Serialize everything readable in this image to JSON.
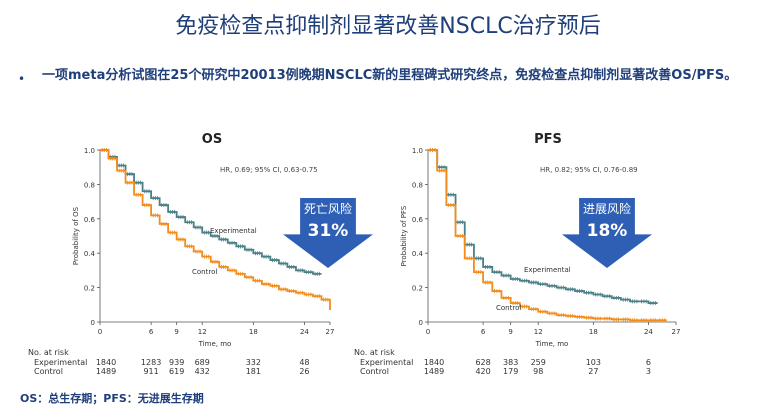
{
  "slide": {
    "title": "免疫检查点抑制剂显著改善NSCLC治疗预后",
    "bullet": "一项meta分析试图在25个研究中20013例晚期NSCLC新的里程碑式研究终点，免疫检查点抑制剂显著改善OS/PFS。",
    "bullet_marker": "•",
    "footnote": "OS：总生存期；PFS：无进展生存期"
  },
  "chart_data": [
    {
      "type": "line",
      "title": "OS",
      "xlabel": "Time, mo",
      "ylabel": "Probability of OS",
      "xlim": [
        0,
        27
      ],
      "ylim": [
        0,
        1.0
      ],
      "xticks": [
        0,
        6,
        9,
        12,
        18,
        24,
        27
      ],
      "yticks": [
        "0",
        "0.2",
        "0.4",
        "0.6",
        "0.8",
        "1.0"
      ],
      "annotation": "HR, 0.69; 95% CI, 0.63-0.75",
      "callout": {
        "label": "死亡风险",
        "value": "31%",
        "color": "#2e5fb5"
      },
      "series": [
        {
          "name": "Experimental",
          "color": "#4a7f86",
          "x": [
            0,
            1,
            2,
            3,
            4,
            5,
            6,
            7,
            8,
            9,
            10,
            11,
            12,
            13,
            14,
            15,
            16,
            17,
            18,
            19,
            20,
            21,
            22,
            23,
            24,
            25,
            26
          ],
          "y": [
            1.0,
            0.96,
            0.91,
            0.86,
            0.81,
            0.76,
            0.72,
            0.68,
            0.64,
            0.61,
            0.58,
            0.55,
            0.52,
            0.5,
            0.48,
            0.46,
            0.44,
            0.42,
            0.4,
            0.38,
            0.36,
            0.34,
            0.32,
            0.3,
            0.29,
            0.28,
            0.28
          ]
        },
        {
          "name": "Control",
          "color": "#f28c1a",
          "x": [
            0,
            1,
            2,
            3,
            4,
            5,
            6,
            7,
            8,
            9,
            10,
            11,
            12,
            13,
            14,
            15,
            16,
            17,
            18,
            19,
            20,
            21,
            22,
            23,
            24,
            25,
            26,
            27
          ],
          "y": [
            1.0,
            0.95,
            0.88,
            0.81,
            0.74,
            0.68,
            0.62,
            0.57,
            0.52,
            0.48,
            0.44,
            0.41,
            0.38,
            0.35,
            0.32,
            0.3,
            0.28,
            0.26,
            0.24,
            0.22,
            0.21,
            0.19,
            0.18,
            0.17,
            0.16,
            0.15,
            0.13,
            0.07
          ]
        }
      ],
      "risk_table": {
        "header": "No. at risk",
        "times": [
          0,
          6,
          9,
          12,
          18,
          24
        ],
        "rows": [
          {
            "label": "Experimental",
            "values": [
              "1840",
              "1283",
              "939",
              "689",
              "332",
              "48"
            ]
          },
          {
            "label": "Control",
            "values": [
              "1489",
              "911",
              "619",
              "432",
              "181",
              "26"
            ]
          }
        ]
      }
    },
    {
      "type": "line",
      "title": "PFS",
      "xlabel": "Time, mo",
      "ylabel": "Probability of PFS",
      "xlim": [
        0,
        27
      ],
      "ylim": [
        0,
        1.0
      ],
      "xticks": [
        0,
        6,
        9,
        12,
        18,
        24,
        27
      ],
      "yticks": [
        "0",
        "0.2",
        "0.4",
        "0.6",
        "0.8",
        "1.0"
      ],
      "annotation": "HR, 0.82; 95% CI, 0.76-0.89",
      "callout": {
        "label": "进展风险",
        "value": "18%",
        "color": "#2e5fb5"
      },
      "series": [
        {
          "name": "Experimental",
          "color": "#4a7f86",
          "x": [
            0,
            1,
            2,
            3,
            4,
            5,
            6,
            7,
            8,
            9,
            10,
            11,
            12,
            13,
            14,
            15,
            16,
            17,
            18,
            19,
            20,
            21,
            22,
            23,
            24,
            25
          ],
          "y": [
            1.0,
            0.9,
            0.74,
            0.58,
            0.45,
            0.37,
            0.32,
            0.29,
            0.27,
            0.25,
            0.24,
            0.23,
            0.22,
            0.21,
            0.2,
            0.19,
            0.18,
            0.17,
            0.16,
            0.15,
            0.14,
            0.13,
            0.12,
            0.12,
            0.11,
            0.11
          ]
        },
        {
          "name": "Control",
          "color": "#f28c1a",
          "x": [
            0,
            1,
            2,
            3,
            4,
            5,
            6,
            7,
            8,
            9,
            10,
            11,
            12,
            13,
            14,
            15,
            16,
            17,
            18,
            19,
            20,
            21,
            22,
            23,
            24,
            25,
            26
          ],
          "y": [
            1.0,
            0.88,
            0.68,
            0.5,
            0.37,
            0.29,
            0.23,
            0.18,
            0.14,
            0.11,
            0.09,
            0.075,
            0.06,
            0.05,
            0.04,
            0.035,
            0.03,
            0.025,
            0.02,
            0.02,
            0.015,
            0.015,
            0.01,
            0.01,
            0.01,
            0.01,
            0.01
          ]
        }
      ],
      "risk_table": {
        "header": "No. at risk",
        "times": [
          0,
          6,
          9,
          12,
          18,
          24
        ],
        "rows": [
          {
            "label": "Experimental",
            "values": [
              "1840",
              "628",
              "383",
              "259",
              "103",
              "6"
            ]
          },
          {
            "label": "Control",
            "values": [
              "1489",
              "420",
              "179",
              "98",
              "27",
              "3"
            ]
          }
        ]
      }
    }
  ]
}
